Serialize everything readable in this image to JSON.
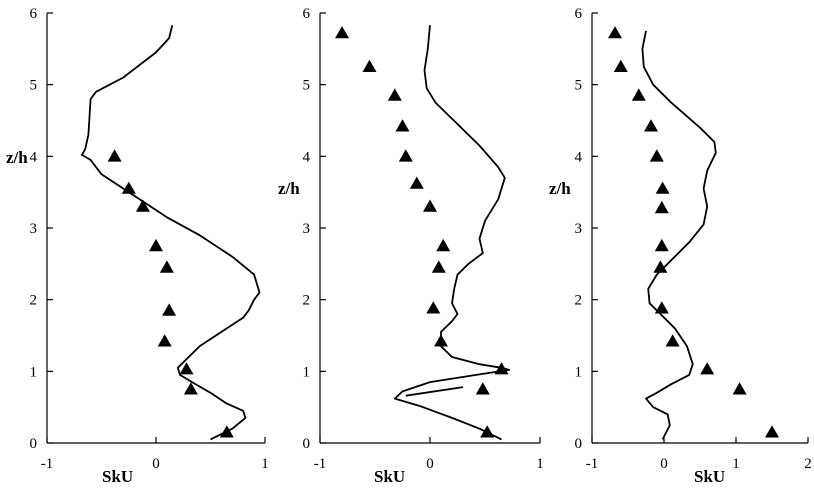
{
  "chart_data": [
    {
      "type": "line",
      "xlabel": "SkU",
      "ylabel": "z/h",
      "xlim": [
        -1,
        1
      ],
      "ylim": [
        0,
        6
      ],
      "xticks": [
        -1,
        0,
        1
      ],
      "yticks": [
        0,
        1,
        2,
        3,
        4,
        5,
        6
      ],
      "xtick_labels": [
        "-1",
        "0",
        "1"
      ],
      "ytick_labels": [
        "0",
        "1",
        "2",
        "3",
        "4",
        "5",
        "6"
      ],
      "grid": false,
      "series": [
        {
          "kind": "line",
          "points": [
            [
              0.15,
              5.83
            ],
            [
              0.12,
              5.65
            ],
            [
              0.0,
              5.45
            ],
            [
              -0.3,
              5.1
            ],
            [
              -0.55,
              4.9
            ],
            [
              -0.6,
              4.8
            ],
            [
              -0.62,
              4.3
            ],
            [
              -0.65,
              4.1
            ],
            [
              -0.68,
              4.02
            ],
            [
              -0.6,
              3.95
            ],
            [
              -0.5,
              3.75
            ],
            [
              -0.35,
              3.6
            ],
            [
              -0.15,
              3.4
            ],
            [
              0.1,
              3.15
            ],
            [
              0.4,
              2.9
            ],
            [
              0.7,
              2.6
            ],
            [
              0.9,
              2.35
            ],
            [
              0.95,
              2.1
            ],
            [
              0.9,
              2.0
            ],
            [
              0.85,
              1.85
            ],
            [
              0.8,
              1.75
            ],
            [
              0.6,
              1.55
            ],
            [
              0.4,
              1.35
            ],
            [
              0.3,
              1.2
            ],
            [
              0.2,
              1.05
            ],
            [
              0.22,
              0.95
            ],
            [
              0.33,
              0.85
            ],
            [
              0.5,
              0.7
            ],
            [
              0.65,
              0.55
            ],
            [
              0.8,
              0.45
            ],
            [
              0.82,
              0.35
            ],
            [
              0.7,
              0.2
            ],
            [
              0.5,
              0.05
            ]
          ]
        },
        {
          "kind": "scatter",
          "marker": "triangle",
          "points": [
            [
              -0.38,
              4.0
            ],
            [
              -0.25,
              3.55
            ],
            [
              -0.12,
              3.3
            ],
            [
              0.0,
              2.75
            ],
            [
              0.1,
              2.45
            ],
            [
              0.12,
              1.85
            ],
            [
              0.08,
              1.42
            ],
            [
              0.28,
              1.03
            ],
            [
              0.32,
              0.75
            ],
            [
              0.65,
              0.15
            ]
          ]
        }
      ]
    },
    {
      "type": "line",
      "xlabel": "SkU",
      "ylabel": "z/h",
      "xlim": [
        -1,
        1
      ],
      "ylim": [
        0,
        6
      ],
      "xticks": [
        -1,
        0,
        1
      ],
      "yticks": [
        0,
        1,
        2,
        3,
        4,
        5,
        6
      ],
      "xtick_labels": [
        "-1",
        "0",
        "1"
      ],
      "ytick_labels": [
        "0",
        "1",
        "2",
        "3",
        "4",
        "5",
        "6"
      ],
      "grid": false,
      "series": [
        {
          "kind": "line",
          "points": [
            [
              0.0,
              5.83
            ],
            [
              -0.02,
              5.5
            ],
            [
              -0.05,
              5.2
            ],
            [
              -0.03,
              4.95
            ],
            [
              0.05,
              4.75
            ],
            [
              0.25,
              4.45
            ],
            [
              0.45,
              4.15
            ],
            [
              0.62,
              3.85
            ],
            [
              0.68,
              3.7
            ],
            [
              0.62,
              3.4
            ],
            [
              0.5,
              3.1
            ],
            [
              0.45,
              2.85
            ],
            [
              0.48,
              2.65
            ],
            [
              0.35,
              2.5
            ],
            [
              0.25,
              2.35
            ],
            [
              0.22,
              2.15
            ],
            [
              0.2,
              1.95
            ],
            [
              0.25,
              1.8
            ],
            [
              0.2,
              1.7
            ],
            [
              0.1,
              1.55
            ],
            [
              0.1,
              1.35
            ],
            [
              0.2,
              1.2
            ],
            [
              0.45,
              1.1
            ],
            [
              0.65,
              1.05
            ],
            [
              0.72,
              1.02
            ],
            [
              0.42,
              0.95
            ],
            [
              0.0,
              0.85
            ],
            [
              -0.25,
              0.72
            ],
            [
              -0.32,
              0.62
            ],
            [
              -0.1,
              0.52
            ],
            [
              0.2,
              0.35
            ],
            [
              0.45,
              0.2
            ],
            [
              0.65,
              0.05
            ]
          ]
        },
        {
          "kind": "line",
          "points": [
            [
              -0.22,
              0.66
            ],
            [
              0.3,
              0.78
            ]
          ]
        },
        {
          "kind": "scatter",
          "marker": "triangle",
          "points": [
            [
              -0.8,
              5.72
            ],
            [
              -0.55,
              5.25
            ],
            [
              -0.32,
              4.85
            ],
            [
              -0.25,
              4.42
            ],
            [
              -0.22,
              4.0
            ],
            [
              -0.12,
              3.62
            ],
            [
              0.0,
              3.3
            ],
            [
              0.12,
              2.75
            ],
            [
              0.08,
              2.45
            ],
            [
              0.03,
              1.88
            ],
            [
              0.1,
              1.42
            ],
            [
              0.65,
              1.03
            ],
            [
              0.48,
              0.75
            ],
            [
              0.52,
              0.15
            ]
          ]
        }
      ]
    },
    {
      "type": "line",
      "xlabel": "SkU",
      "ylabel": "z/h",
      "xlim": [
        -1,
        2
      ],
      "ylim": [
        0,
        6
      ],
      "xticks": [
        -1,
        0,
        1,
        2
      ],
      "yticks": [
        0,
        1,
        2,
        3,
        4,
        5,
        6
      ],
      "xtick_labels": [
        "-1",
        "0",
        "1",
        "2"
      ],
      "ytick_labels": [
        "0",
        "1",
        "2",
        "3",
        "4",
        "5",
        "6"
      ],
      "grid": false,
      "series": [
        {
          "kind": "line",
          "points": [
            [
              -0.25,
              5.75
            ],
            [
              -0.3,
              5.5
            ],
            [
              -0.28,
              5.25
            ],
            [
              -0.15,
              5.0
            ],
            [
              0.1,
              4.75
            ],
            [
              0.5,
              4.4
            ],
            [
              0.7,
              4.2
            ],
            [
              0.72,
              4.05
            ],
            [
              0.6,
              3.8
            ],
            [
              0.55,
              3.55
            ],
            [
              0.6,
              3.3
            ],
            [
              0.55,
              3.05
            ],
            [
              0.35,
              2.8
            ],
            [
              0.1,
              2.55
            ],
            [
              -0.1,
              2.35
            ],
            [
              -0.22,
              2.15
            ],
            [
              -0.2,
              1.95
            ],
            [
              -0.05,
              1.8
            ],
            [
              0.15,
              1.6
            ],
            [
              0.32,
              1.35
            ],
            [
              0.4,
              1.1
            ],
            [
              0.35,
              0.95
            ],
            [
              0.1,
              0.82
            ],
            [
              -0.1,
              0.7
            ],
            [
              -0.25,
              0.62
            ],
            [
              -0.15,
              0.5
            ],
            [
              0.05,
              0.4
            ],
            [
              0.08,
              0.25
            ],
            [
              -0.02,
              0.05
            ]
          ]
        },
        {
          "kind": "scatter",
          "marker": "triangle",
          "points": [
            [
              -0.68,
              5.72
            ],
            [
              -0.6,
              5.25
            ],
            [
              -0.35,
              4.85
            ],
            [
              -0.18,
              4.42
            ],
            [
              -0.1,
              4.0
            ],
            [
              -0.02,
              3.55
            ],
            [
              -0.03,
              3.28
            ],
            [
              -0.03,
              2.75
            ],
            [
              -0.05,
              2.45
            ],
            [
              -0.03,
              1.88
            ],
            [
              0.12,
              1.42
            ],
            [
              0.6,
              1.03
            ],
            [
              1.05,
              0.75
            ],
            [
              1.5,
              0.15
            ]
          ]
        }
      ]
    }
  ]
}
